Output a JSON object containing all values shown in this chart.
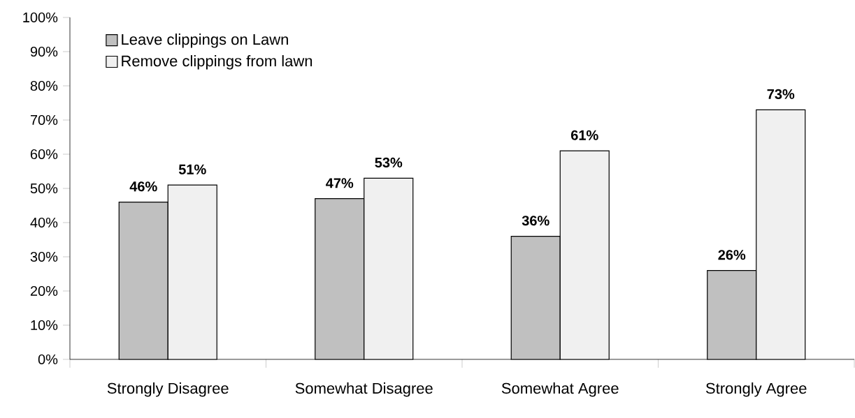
{
  "chart_data": {
    "type": "bar",
    "categories": [
      "Strongly Disagree",
      "Somewhat Disagree",
      "Somewhat Agree",
      "Strongly Agree"
    ],
    "series": [
      {
        "name": "Leave clippings on Lawn",
        "color": "#c0c0c0",
        "values": [
          46,
          47,
          36,
          26
        ],
        "value_labels": [
          "46%",
          "47%",
          "36%",
          "26%"
        ]
      },
      {
        "name": "Remove clippings from lawn",
        "color": "#f0f0f0",
        "values": [
          51,
          53,
          61,
          73
        ],
        "value_labels": [
          "51%",
          "53%",
          "61%",
          "73%"
        ]
      }
    ],
    "ylim": [
      0,
      100
    ],
    "yticks": [
      {
        "value": 0,
        "label": "0%"
      },
      {
        "value": 10,
        "label": "10%"
      },
      {
        "value": 20,
        "label": "20%"
      },
      {
        "value": 30,
        "label": "30%"
      },
      {
        "value": 40,
        "label": "40%"
      },
      {
        "value": 50,
        "label": "50%"
      },
      {
        "value": 60,
        "label": "60%"
      },
      {
        "value": 70,
        "label": "70%"
      },
      {
        "value": 80,
        "label": "80%"
      },
      {
        "value": 90,
        "label": "90%"
      },
      {
        "value": 100,
        "label": "100%"
      }
    ],
    "legend": "top left",
    "grid": false
  }
}
